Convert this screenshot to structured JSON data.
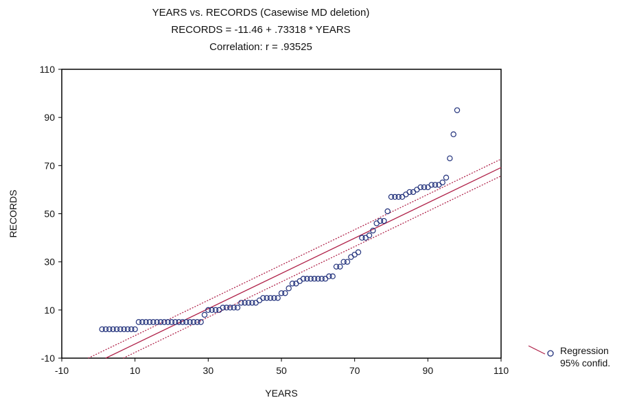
{
  "chart_data": {
    "type": "scatter",
    "title": "YEARS vs. RECORDS (Casewise MD deletion)",
    "equation": "RECORDS = -11.46 + .73318 * YEARS",
    "correlation": "Correlation: r = .93525",
    "xlabel": "YEARS",
    "ylabel": "RECORDS",
    "xlim": [
      -10,
      110
    ],
    "ylim": [
      -10,
      110
    ],
    "xticks": [
      "-10",
      "10",
      "30",
      "50",
      "70",
      "90",
      "110"
    ],
    "yticks": [
      "-10",
      "10",
      "30",
      "50",
      "70",
      "90",
      "110"
    ],
    "grid": false,
    "regression": {
      "intercept": -11.46,
      "slope": 0.73318
    },
    "confidence_band": {
      "offset_low": 3.5,
      "offset_high": 3.5
    },
    "legend": {
      "position": "bottom-right",
      "entries": [
        "Regression",
        "95% confid."
      ]
    },
    "colors": {
      "points": "#1f2f7a",
      "regression": "#b0234a",
      "confidence": "#b0234a"
    },
    "points": [
      [
        1,
        2
      ],
      [
        2,
        2
      ],
      [
        3,
        2
      ],
      [
        4,
        2
      ],
      [
        5,
        2
      ],
      [
        6,
        2
      ],
      [
        7,
        2
      ],
      [
        8,
        2
      ],
      [
        9,
        2
      ],
      [
        10,
        2
      ],
      [
        11,
        5
      ],
      [
        12,
        5
      ],
      [
        13,
        5
      ],
      [
        14,
        5
      ],
      [
        15,
        5
      ],
      [
        16,
        5
      ],
      [
        17,
        5
      ],
      [
        18,
        5
      ],
      [
        19,
        5
      ],
      [
        20,
        5
      ],
      [
        21,
        5
      ],
      [
        22,
        5
      ],
      [
        23,
        5
      ],
      [
        24,
        5
      ],
      [
        25,
        5
      ],
      [
        26,
        5
      ],
      [
        27,
        5
      ],
      [
        28,
        5
      ],
      [
        29,
        8
      ],
      [
        30,
        10
      ],
      [
        31,
        10
      ],
      [
        32,
        10
      ],
      [
        33,
        10
      ],
      [
        34,
        11
      ],
      [
        35,
        11
      ],
      [
        36,
        11
      ],
      [
        37,
        11
      ],
      [
        38,
        11
      ],
      [
        39,
        13
      ],
      [
        40,
        13
      ],
      [
        41,
        13
      ],
      [
        42,
        13
      ],
      [
        43,
        13
      ],
      [
        44,
        14
      ],
      [
        45,
        15
      ],
      [
        46,
        15
      ],
      [
        47,
        15
      ],
      [
        48,
        15
      ],
      [
        49,
        15
      ],
      [
        50,
        17
      ],
      [
        51,
        17
      ],
      [
        52,
        19
      ],
      [
        53,
        21
      ],
      [
        54,
        21
      ],
      [
        55,
        22
      ],
      [
        56,
        23
      ],
      [
        57,
        23
      ],
      [
        58,
        23
      ],
      [
        59,
        23
      ],
      [
        60,
        23
      ],
      [
        61,
        23
      ],
      [
        62,
        23
      ],
      [
        63,
        24
      ],
      [
        64,
        24
      ],
      [
        65,
        28
      ],
      [
        66,
        28
      ],
      [
        67,
        30
      ],
      [
        68,
        30
      ],
      [
        69,
        32
      ],
      [
        70,
        33
      ],
      [
        71,
        34
      ],
      [
        72,
        40
      ],
      [
        73,
        40
      ],
      [
        74,
        41
      ],
      [
        75,
        43
      ],
      [
        76,
        46
      ],
      [
        77,
        47
      ],
      [
        78,
        47
      ],
      [
        79,
        51
      ],
      [
        80,
        57
      ],
      [
        81,
        57
      ],
      [
        82,
        57
      ],
      [
        83,
        57
      ],
      [
        84,
        58
      ],
      [
        85,
        59
      ],
      [
        86,
        59
      ],
      [
        87,
        60
      ],
      [
        88,
        61
      ],
      [
        89,
        61
      ],
      [
        90,
        61
      ],
      [
        91,
        62
      ],
      [
        92,
        62
      ],
      [
        93,
        62
      ],
      [
        94,
        63
      ],
      [
        95,
        65
      ],
      [
        96,
        73
      ],
      [
        97,
        83
      ],
      [
        98,
        93
      ]
    ]
  }
}
